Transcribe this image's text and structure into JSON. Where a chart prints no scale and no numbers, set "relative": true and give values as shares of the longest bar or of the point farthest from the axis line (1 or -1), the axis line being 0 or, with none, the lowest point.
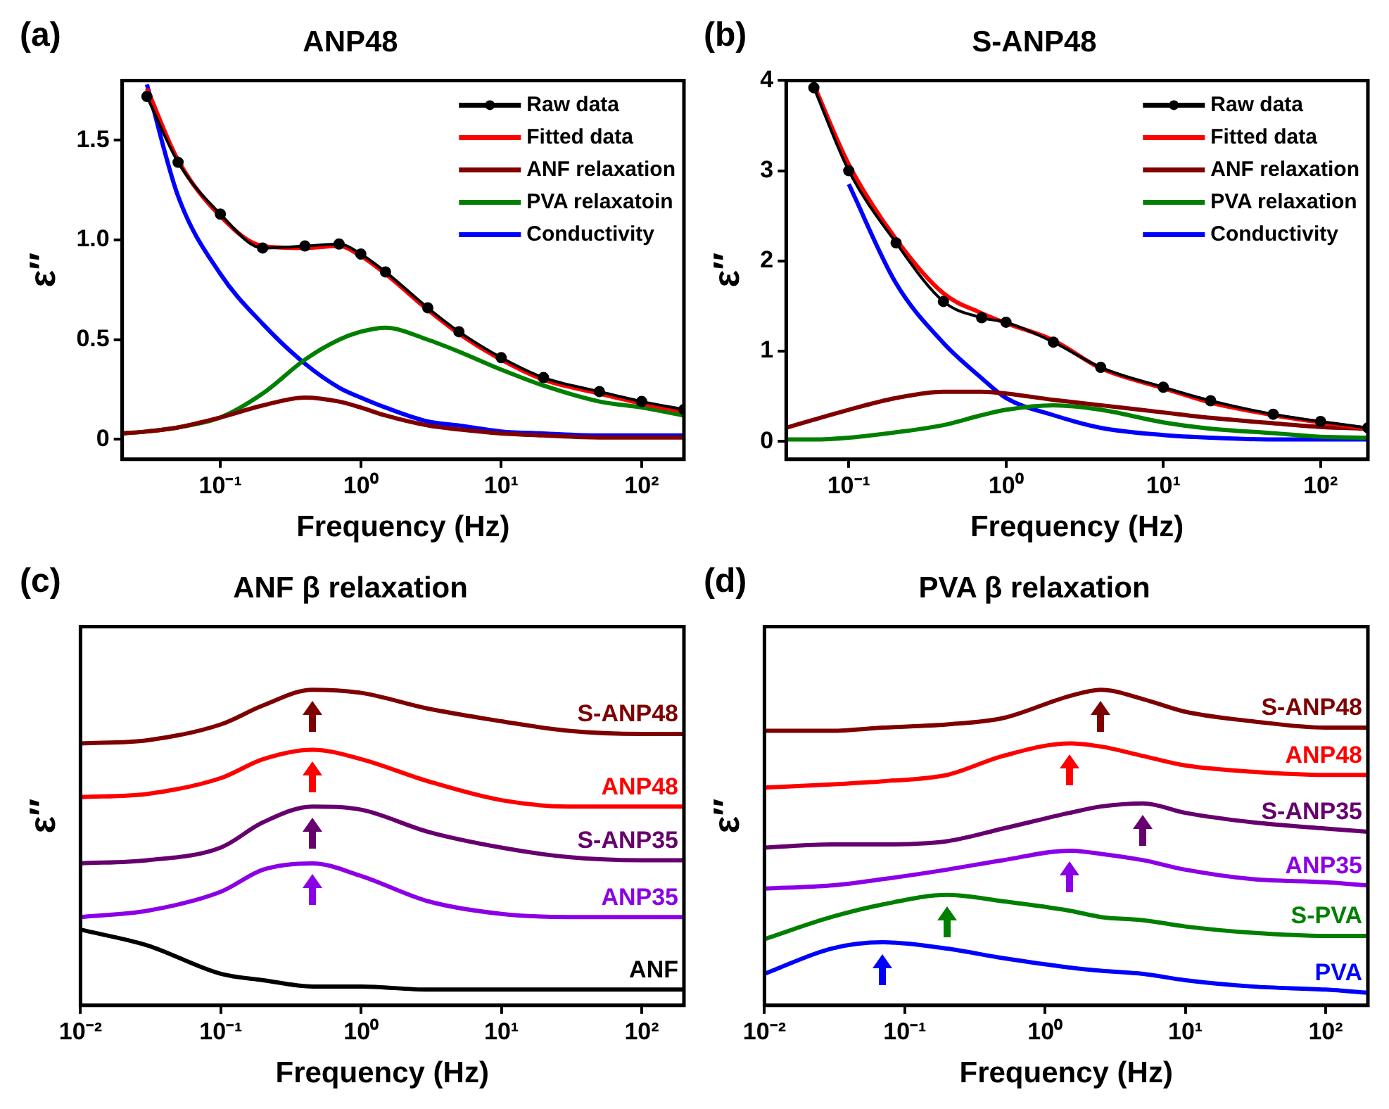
{
  "chart_data": [
    {
      "type": "line",
      "title": "ANP48",
      "annotations": [
        "(a)"
      ],
      "xlabel": "Frequency (Hz)",
      "ylabel": "ε″",
      "log": "x",
      "grid": false,
      "legend": "top right",
      "marker": "none",
      "xlim": [
        0.02,
        200
      ],
      "ylim": [
        -0.1,
        1.8
      ],
      "xticks": [
        {
          "value": 0.1,
          "label": "10⁻¹"
        },
        {
          "value": 1,
          "label": "10⁰"
        },
        {
          "value": 10,
          "label": "10¹"
        },
        {
          "value": 100,
          "label": "10²"
        }
      ],
      "yticks": [
        0,
        0.5,
        {
          "value": 1,
          "label": "1.0"
        },
        1.5
      ],
      "x": [
        0.02,
        0.03,
        0.05,
        0.1,
        0.2,
        0.4,
        0.7,
        1,
        1.5,
        3,
        5,
        10,
        20,
        50,
        100,
        200
      ],
      "series": [
        {
          "name": "Raw data",
          "color": "#000000",
          "marker": "circle",
          "values": [
            null,
            1.72,
            1.39,
            1.13,
            0.96,
            0.97,
            0.98,
            0.93,
            0.84,
            0.66,
            0.54,
            0.41,
            0.31,
            0.24,
            0.19,
            0.15
          ]
        },
        {
          "name": "Fitted data",
          "color": "#ff0000",
          "values": [
            null,
            1.76,
            1.4,
            1.12,
            0.97,
            0.96,
            0.97,
            0.92,
            0.83,
            0.65,
            0.53,
            0.4,
            0.3,
            0.23,
            0.18,
            0.14
          ]
        },
        {
          "name": "ANF relaxation",
          "color": "#800000",
          "values": [
            0.03,
            0.04,
            0.06,
            0.11,
            0.17,
            0.21,
            0.19,
            0.16,
            0.12,
            0.07,
            0.05,
            0.03,
            0.02,
            0.01,
            0.01,
            0.01
          ]
        },
        {
          "name": "PVA relaxatoin",
          "color": "#007f00",
          "values": [
            0.03,
            0.04,
            0.06,
            0.11,
            0.23,
            0.4,
            0.5,
            0.54,
            0.56,
            0.5,
            0.44,
            0.35,
            0.27,
            0.19,
            0.16,
            0.12
          ]
        },
        {
          "name": "Conductivity",
          "color": "#0000ff",
          "values": [
            null,
            1.78,
            1.22,
            0.83,
            0.58,
            0.38,
            0.26,
            0.21,
            0.16,
            0.09,
            0.07,
            0.04,
            0.03,
            0.02,
            0.02,
            0.02
          ]
        }
      ]
    },
    {
      "type": "line",
      "title": "S-ANP48",
      "annotations": [
        "(b)"
      ],
      "xlabel": "Frequency (Hz)",
      "ylabel": "ε″",
      "log": "x",
      "grid": false,
      "legend": "top right",
      "marker": "none",
      "xlim": [
        0.04,
        200
      ],
      "ylim": [
        -0.2,
        4
      ],
      "xticks": [
        {
          "value": 0.1,
          "label": "10⁻¹"
        },
        {
          "value": 1,
          "label": "10⁰"
        },
        {
          "value": 10,
          "label": "10¹"
        },
        {
          "value": 100,
          "label": "10²"
        }
      ],
      "yticks": [
        0,
        1,
        2,
        3,
        4
      ],
      "x": [
        0.04,
        0.06,
        0.1,
        0.2,
        0.4,
        0.7,
        1,
        2,
        4,
        10,
        20,
        50,
        100,
        200
      ],
      "series": [
        {
          "name": "Raw data",
          "color": "#000000",
          "marker": "circle",
          "values": [
            null,
            3.92,
            3.0,
            2.2,
            1.55,
            1.37,
            1.32,
            1.1,
            0.82,
            0.6,
            0.45,
            0.3,
            0.22,
            0.15
          ]
        },
        {
          "name": "Fitted data",
          "color": "#ff0000",
          "values": [
            null,
            3.95,
            3.07,
            2.24,
            1.64,
            1.42,
            1.31,
            1.12,
            0.81,
            0.59,
            0.43,
            0.29,
            0.21,
            0.14
          ]
        },
        {
          "name": "ANF relaxation",
          "color": "#800000",
          "values": [
            0.15,
            0.24,
            0.35,
            0.48,
            0.55,
            0.55,
            0.53,
            0.46,
            0.4,
            0.32,
            0.26,
            0.2,
            0.16,
            0.14
          ]
        },
        {
          "name": "PVA relaxation",
          "color": "#007f00",
          "values": [
            0.02,
            0.02,
            0.04,
            0.1,
            0.18,
            0.29,
            0.35,
            0.4,
            0.35,
            0.21,
            0.14,
            0.09,
            0.05,
            0.04
          ]
        },
        {
          "name": "Conductivity",
          "color": "#0000ff",
          "values": [
            null,
            null,
            2.85,
            1.75,
            1.09,
            0.7,
            0.48,
            0.29,
            0.15,
            0.07,
            0.04,
            0.02,
            0.02,
            0.02
          ]
        }
      ]
    },
    {
      "type": "line",
      "title": "ANF β relaxation",
      "annotations": [
        "(c)"
      ],
      "xlabel": "Frequency (Hz)",
      "ylabel": "ε″",
      "log": "x",
      "relative": true,
      "grid": false,
      "legend": false,
      "marker": "none",
      "xlim": [
        0.01,
        200
      ],
      "xticks": [
        {
          "value": 0.01,
          "label": "10⁻²"
        },
        {
          "value": 0.1,
          "label": "10⁻¹"
        },
        {
          "value": 1,
          "label": "10⁰"
        },
        {
          "value": 10,
          "label": "10¹"
        },
        {
          "value": 100,
          "label": "10²"
        }
      ],
      "x": [
        0.01,
        0.03,
        0.1,
        0.2,
        0.45,
        1,
        3,
        10,
        30,
        100,
        200
      ],
      "series": [
        {
          "name": "S-ANP48",
          "color": "#7f0000",
          "values": [
            0.83,
            0.84,
            0.89,
            0.95,
            1,
            0.99,
            0.94,
            0.9,
            0.87,
            0.86,
            0.86
          ]
        },
        {
          "name": "ANP48",
          "color": "#ff0000",
          "values": [
            0.66,
            0.67,
            0.72,
            0.78,
            0.81,
            0.78,
            0.71,
            0.65,
            0.63,
            0.63,
            0.63
          ]
        },
        {
          "name": "S-ANP35",
          "color": "#66006e",
          "values": [
            0.45,
            0.46,
            0.5,
            0.58,
            0.63,
            0.62,
            0.55,
            0.5,
            0.47,
            0.46,
            0.46
          ]
        },
        {
          "name": "ANP35",
          "color": "#8b00e6",
          "values": [
            0.28,
            0.3,
            0.36,
            0.43,
            0.45,
            0.41,
            0.33,
            0.29,
            0.28,
            0.28,
            0.28
          ]
        },
        {
          "name": "ANF",
          "color": "#000000",
          "values": [
            0.24,
            0.19,
            0.1,
            0.08,
            0.06,
            0.06,
            0.05,
            0.05,
            0.05,
            0.05,
            0.05
          ]
        }
      ]
    },
    {
      "type": "line",
      "title": "PVA β relaxation",
      "annotations": [
        "(d)"
      ],
      "xlabel": "Frequency (Hz)",
      "ylabel": "ε″",
      "log": "x",
      "relative": true,
      "grid": false,
      "legend": false,
      "marker": "none",
      "xlim": [
        0.01,
        200
      ],
      "xticks": [
        {
          "value": 0.01,
          "label": "10⁻²"
        },
        {
          "value": 0.1,
          "label": "10⁻¹"
        },
        {
          "value": 1,
          "label": "10⁰"
        },
        {
          "value": 10,
          "label": "10¹"
        },
        {
          "value": 100,
          "label": "10²"
        }
      ],
      "x": [
        0.01,
        0.03,
        0.07,
        0.2,
        0.5,
        1.5,
        2.5,
        5,
        10,
        30,
        100,
        200
      ],
      "series": [
        {
          "name": "S-ANP48",
          "color": "#7f0000",
          "values": [
            0.87,
            0.87,
            0.88,
            0.89,
            0.91,
            0.98,
            1,
            0.97,
            0.93,
            0.9,
            0.88,
            0.88
          ]
        },
        {
          "name": "ANP48",
          "color": "#ff0000",
          "values": [
            0.69,
            0.7,
            0.71,
            0.73,
            0.79,
            0.83,
            0.82,
            0.79,
            0.76,
            0.74,
            0.73,
            0.73
          ]
        },
        {
          "name": "S-ANP35",
          "color": "#66006e",
          "values": [
            0.5,
            0.51,
            0.51,
            0.52,
            0.56,
            0.61,
            0.63,
            0.64,
            0.61,
            0.58,
            0.56,
            0.55
          ]
        },
        {
          "name": "ANP35",
          "color": "#8b00e6",
          "values": [
            0.37,
            0.38,
            0.4,
            0.43,
            0.46,
            0.49,
            0.48,
            0.46,
            0.43,
            0.4,
            0.39,
            0.38
          ]
        },
        {
          "name": "S-PVA",
          "color": "#007f00",
          "values": [
            0.21,
            0.28,
            0.32,
            0.35,
            0.33,
            0.3,
            0.28,
            0.27,
            0.25,
            0.23,
            0.22,
            0.22
          ]
        },
        {
          "name": "PVA",
          "color": "#0000ff",
          "values": [
            0.1,
            0.18,
            0.2,
            0.18,
            0.15,
            0.12,
            0.11,
            0.1,
            0.08,
            0.06,
            0.05,
            0.04
          ]
        }
      ]
    }
  ]
}
